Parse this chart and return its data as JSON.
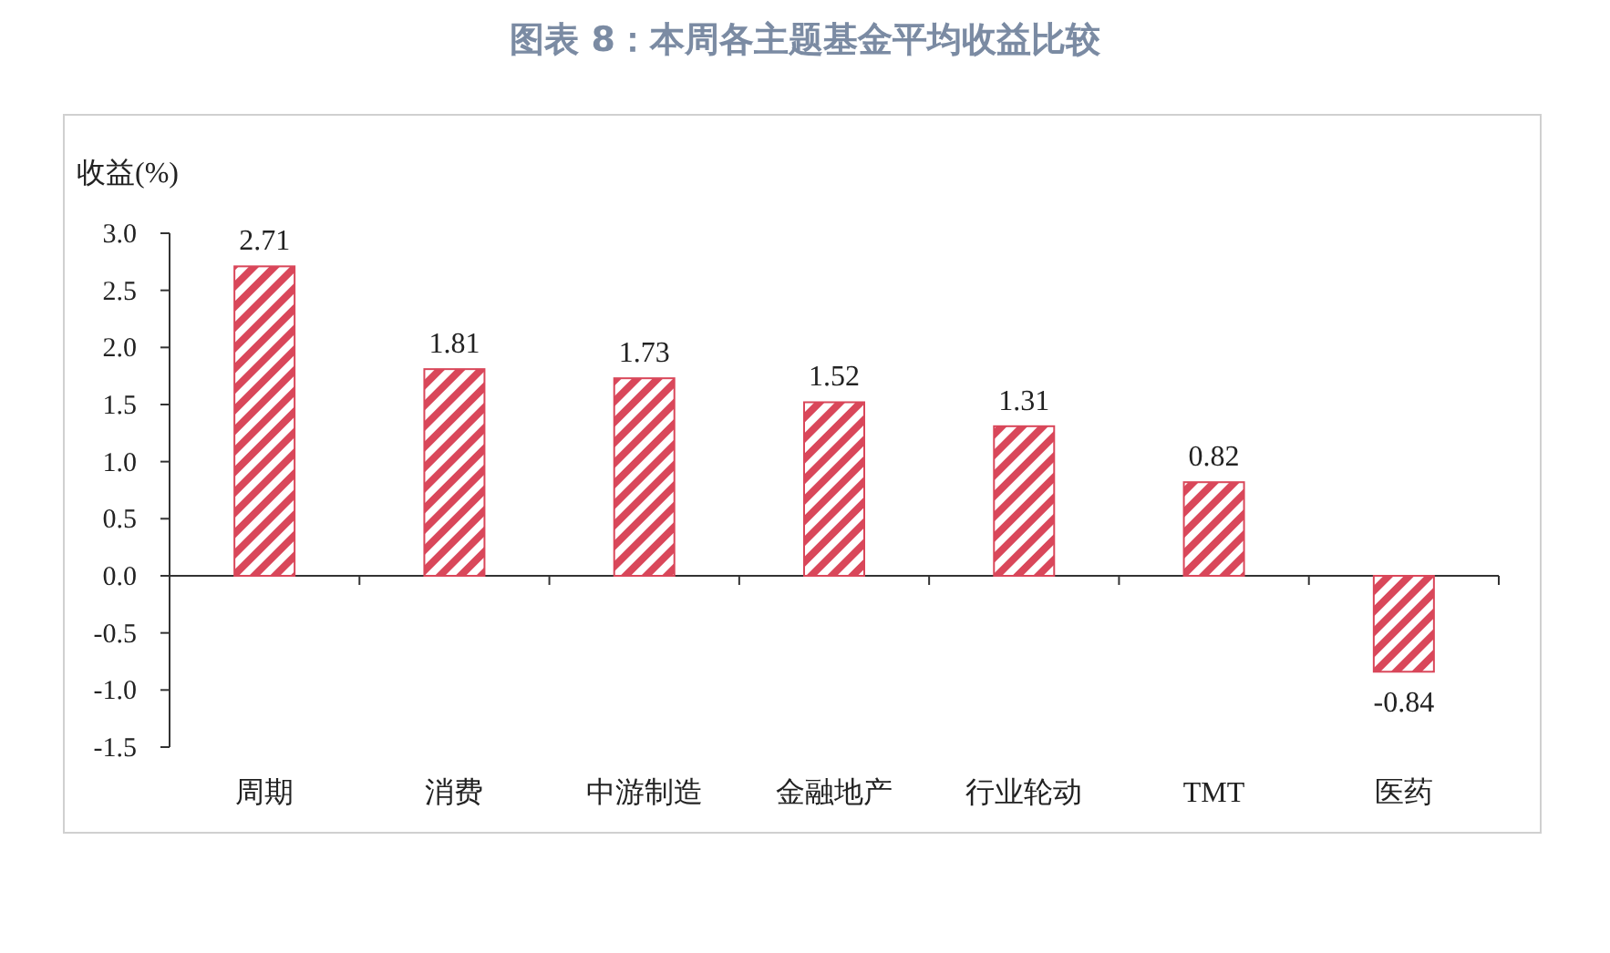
{
  "chart_data": {
    "type": "bar",
    "title": "图表 8：本周各主题基金平均收益比较",
    "ylabel": "收益(%)",
    "categories": [
      "周期",
      "消费",
      "中游制造",
      "金融地产",
      "行业轮动",
      "TMT",
      "医药"
    ],
    "values": [
      2.71,
      1.81,
      1.73,
      1.52,
      1.31,
      0.82,
      -0.84
    ],
    "color": "#d9475a",
    "ylim": [
      -1.5,
      3.0
    ],
    "yticks": [
      {
        "value": -1.5,
        "label": "-1.5"
      },
      {
        "value": -1,
        "label": "-1.0"
      },
      {
        "value": -0.5,
        "label": "-0.5"
      },
      {
        "value": 0,
        "label": "0.0"
      },
      {
        "value": 0.5,
        "label": "0.5"
      },
      {
        "value": 1,
        "label": "1.0"
      },
      {
        "value": 1.5,
        "label": "1.5"
      },
      {
        "value": 2,
        "label": "2.0"
      },
      {
        "value": 2.5,
        "label": "2.5"
      },
      {
        "value": 3,
        "label": "3.0"
      }
    ],
    "data_labels": true
  }
}
